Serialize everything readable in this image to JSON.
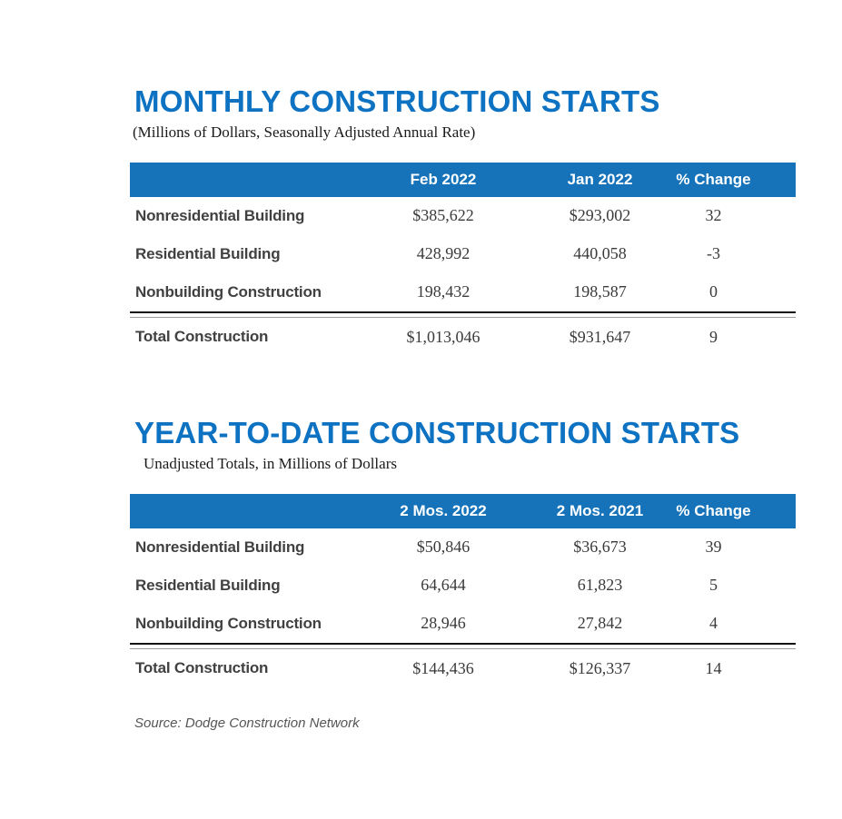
{
  "colors": {
    "header_bar_blue": "#1673ba",
    "title_blue": "#0d72c2",
    "row_label_gray": "#414141",
    "value_gray": "#3a3a3a",
    "source_gray": "#565656",
    "total_rule_black": "#111111"
  },
  "source": "Source: Dodge Construction Network",
  "chart_data": [
    {
      "type": "table",
      "title": "MONTHLY CONSTRUCTION STARTS",
      "subtitle": "(Millions of Dollars, Seasonally Adjusted Annual Rate)",
      "columns": [
        "",
        "Feb 2022",
        "Jan 2022",
        "% Change"
      ],
      "rows": [
        [
          "Nonresidential Building",
          "$385,622",
          "$293,002",
          "32"
        ],
        [
          "Residential Building",
          "428,992",
          "440,058",
          "-3"
        ],
        [
          "Nonbuilding Construction",
          "198,432",
          "198,587",
          "0"
        ]
      ],
      "total_row": [
        "Total Construction",
        "$1,013,046",
        "$931,647",
        "9"
      ]
    },
    {
      "type": "table",
      "title": "YEAR-TO-DATE CONSTRUCTION STARTS",
      "subtitle": "Unadjusted Totals, in Millions of Dollars",
      "columns": [
        "",
        "2 Mos. 2022",
        "2 Mos. 2021",
        "% Change"
      ],
      "rows": [
        [
          "Nonresidential Building",
          "$50,846",
          "$36,673",
          "39"
        ],
        [
          "Residential Building",
          "64,644",
          "61,823",
          "5"
        ],
        [
          "Nonbuilding Construction",
          "28,946",
          "27,842",
          "4"
        ]
      ],
      "total_row": [
        "Total Construction",
        "$144,436",
        "$126,337",
        "14"
      ]
    }
  ]
}
